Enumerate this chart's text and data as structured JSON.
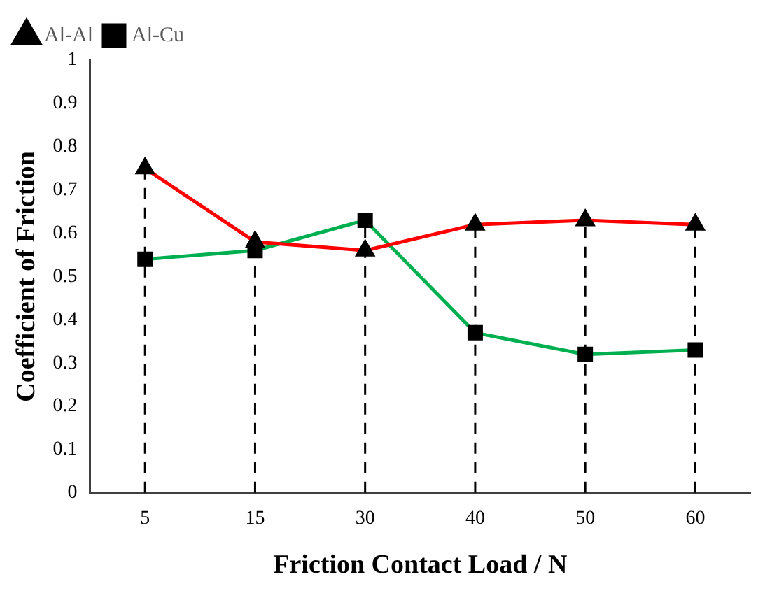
{
  "chart_data": {
    "type": "line",
    "xlabel": "Friction Contact Load / N",
    "ylabel": "Coefficient of Friction",
    "categories": [
      "5",
      "15",
      "30",
      "40",
      "50",
      "60"
    ],
    "series": [
      {
        "name": "Al-Al",
        "color": "#ff0000",
        "marker": "triangle",
        "values": [
          0.75,
          0.58,
          0.56,
          0.62,
          0.63,
          0.62
        ]
      },
      {
        "name": "Al-Cu",
        "color": "#00b050",
        "marker": "square",
        "values": [
          0.54,
          0.56,
          0.63,
          0.37,
          0.32,
          0.33
        ]
      }
    ],
    "ref_lines": [
      {
        "axis": "x",
        "value": "5",
        "color": "#000000",
        "line_style": "dashed"
      },
      {
        "axis": "x",
        "value": "15",
        "color": "#000000",
        "line_style": "dashed"
      },
      {
        "axis": "x",
        "value": "30",
        "color": "#000000",
        "line_style": "dashed"
      },
      {
        "axis": "x",
        "value": "40",
        "color": "#000000",
        "line_style": "dashed"
      },
      {
        "axis": "x",
        "value": "50",
        "color": "#000000",
        "line_style": "dashed"
      },
      {
        "axis": "x",
        "value": "60",
        "color": "#000000",
        "line_style": "dashed"
      }
    ],
    "ylim": [
      0,
      1
    ],
    "yticks": [
      0,
      0.1,
      0.2,
      0.3,
      0.4,
      0.5,
      0.6,
      0.7,
      0.8,
      0.9,
      1
    ],
    "grid": false,
    "legend": "top left"
  }
}
